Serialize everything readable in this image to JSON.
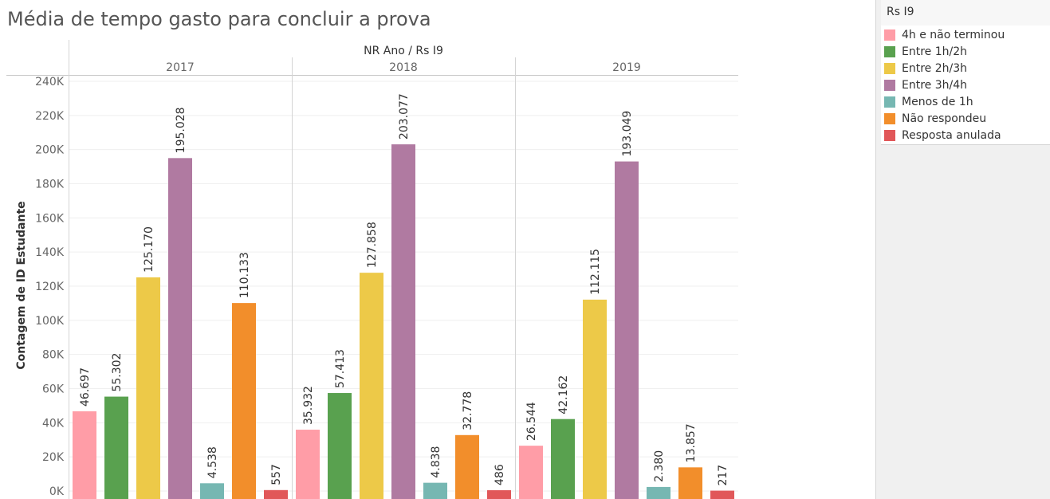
{
  "title": "Média de tempo gasto para concluir a prova",
  "legend": {
    "title": "Rs I9",
    "items": [
      {
        "label": "4h e não terminou",
        "color": "#ff9da7"
      },
      {
        "label": "Entre 1h/2h",
        "color": "#59a14f"
      },
      {
        "label": "Entre 2h/3h",
        "color": "#edc948"
      },
      {
        "label": "Entre 3h/4h",
        "color": "#b07aa1"
      },
      {
        "label": "Menos de 1h",
        "color": "#76b7b2"
      },
      {
        "label": "Não respondeu",
        "color": "#f28e2b"
      },
      {
        "label": "Resposta anulada",
        "color": "#e15759"
      }
    ]
  },
  "chart_data": {
    "type": "bar",
    "column_header": "NR Ano  /  Rs I9",
    "ylabel": "Contagem de ID Estudante",
    "ylim": [
      0,
      240000
    ],
    "yticks": [
      {
        "value": 0,
        "label": "0K"
      },
      {
        "value": 20000,
        "label": "20K"
      },
      {
        "value": 40000,
        "label": "40K"
      },
      {
        "value": 60000,
        "label": "60K"
      },
      {
        "value": 80000,
        "label": "80K"
      },
      {
        "value": 100000,
        "label": "100K"
      },
      {
        "value": 120000,
        "label": "120K"
      },
      {
        "value": 140000,
        "label": "140K"
      },
      {
        "value": 160000,
        "label": "160K"
      },
      {
        "value": 180000,
        "label": "180K"
      },
      {
        "value": 200000,
        "label": "200K"
      },
      {
        "value": 220000,
        "label": "220K"
      },
      {
        "value": 240000,
        "label": "240K"
      }
    ],
    "categories": [
      "4h e não terminou",
      "Entre 1h/2h",
      "Entre 2h/3h",
      "Entre 3h/4h",
      "Menos de 1h",
      "Não respondeu",
      "Resposta anulada"
    ],
    "groups": [
      {
        "name": "2017",
        "values": [
          46697,
          55302,
          125170,
          195028,
          4538,
          110133,
          557
        ],
        "labels": [
          "46.697",
          "55.302",
          "125.170",
          "195.028",
          "4.538",
          "110.133",
          "557"
        ]
      },
      {
        "name": "2018",
        "values": [
          35932,
          57413,
          127858,
          203077,
          4838,
          32778,
          486
        ],
        "labels": [
          "35.932",
          "57.413",
          "127.858",
          "203.077",
          "4.838",
          "32.778",
          "486"
        ]
      },
      {
        "name": "2019",
        "values": [
          26544,
          42162,
          112115,
          193049,
          2380,
          13857,
          217
        ],
        "labels": [
          "26.544",
          "42.162",
          "112.115",
          "193.049",
          "2.380",
          "13.857",
          "217"
        ]
      }
    ],
    "grid": true,
    "legend_position": "right"
  }
}
